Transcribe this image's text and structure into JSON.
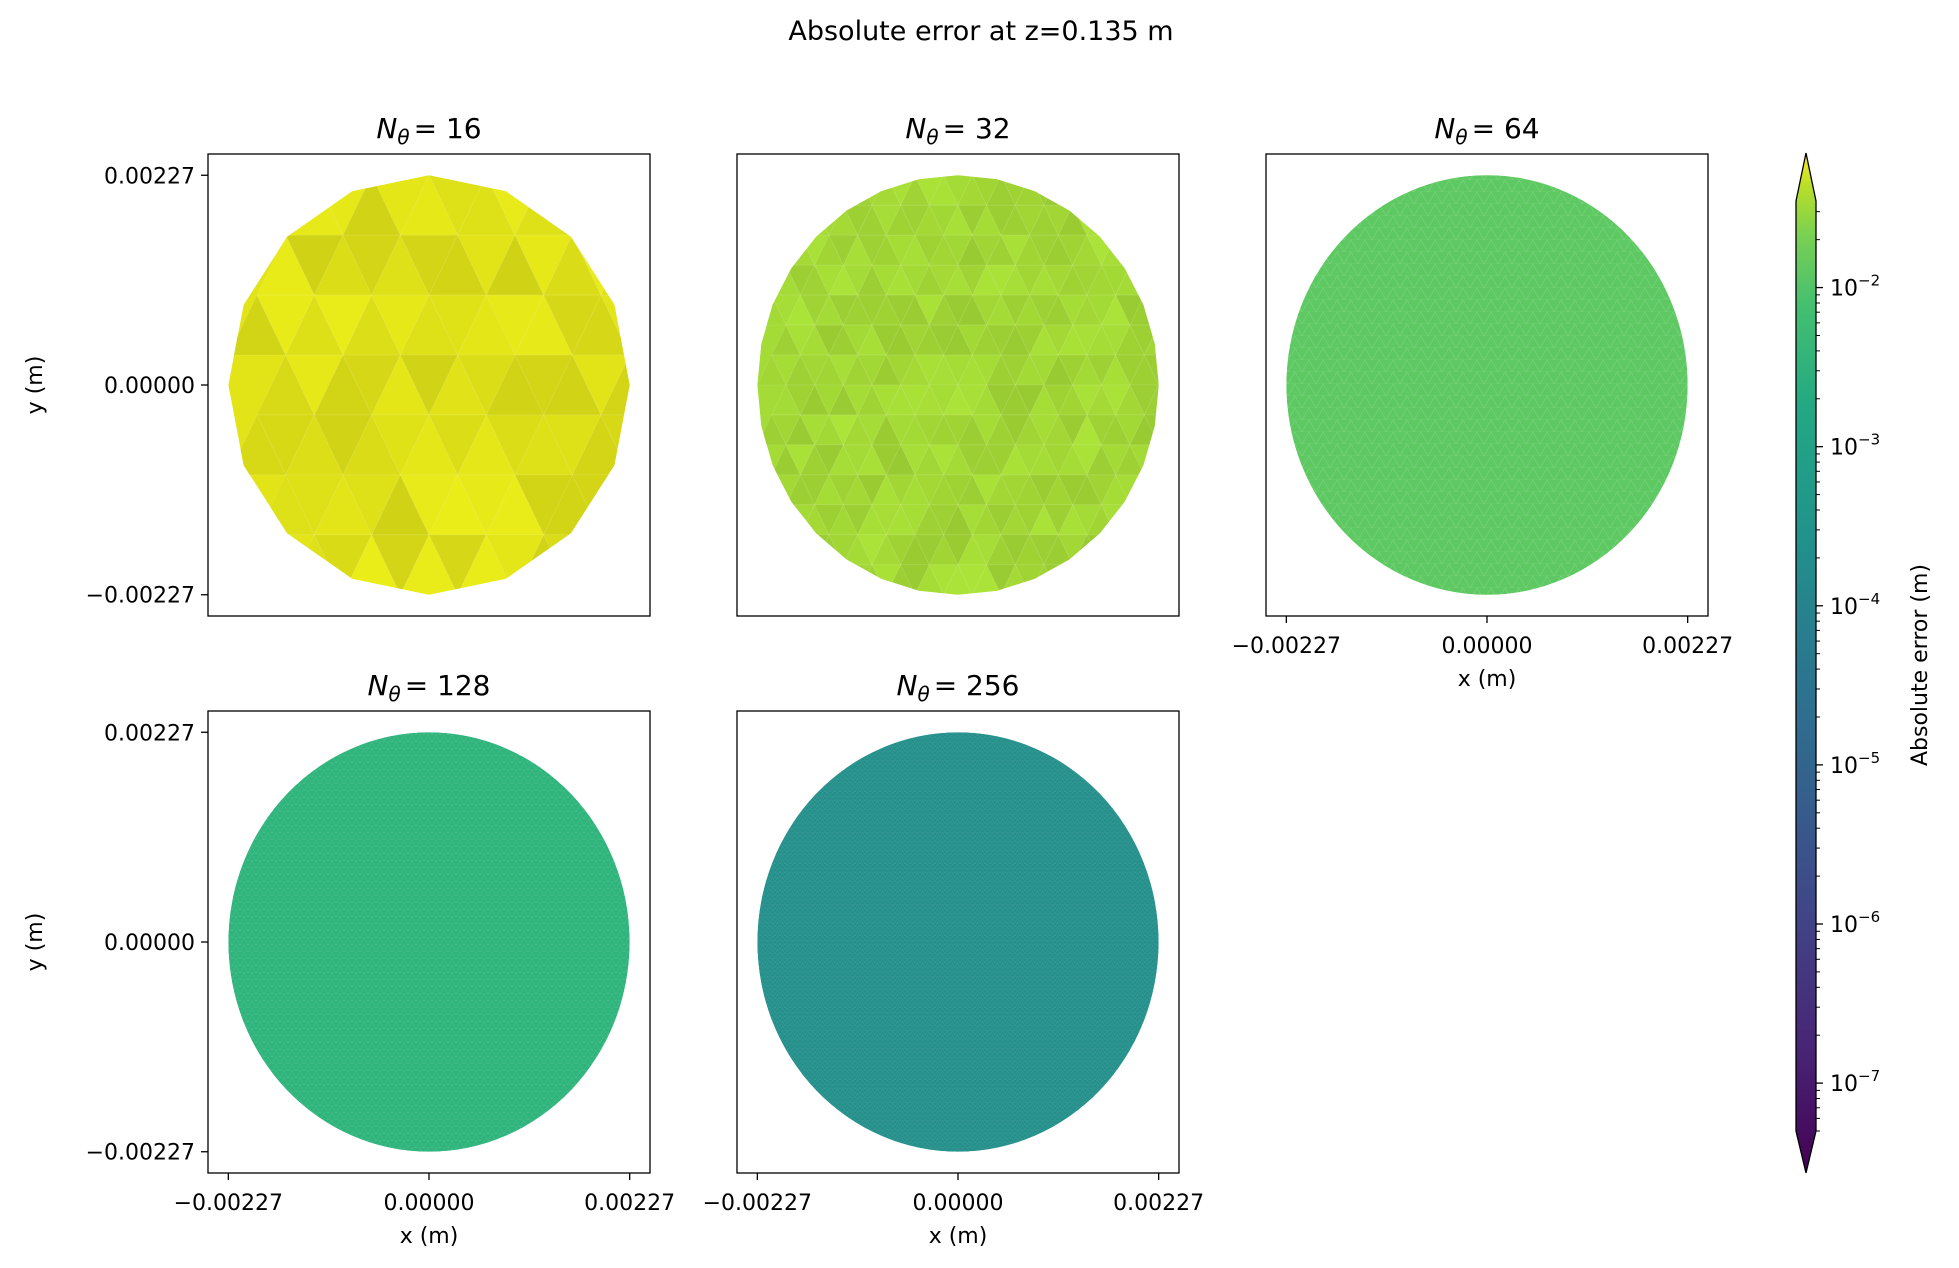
{
  "chart_data": {
    "type": "heatmap",
    "title": "Absolute error at z=0.135 m",
    "colorbar": {
      "label": "Absolute error (m)",
      "scale": "log",
      "colormap": "viridis",
      "range": [
        5e-08,
        0.035
      ],
      "extend": "both",
      "tick_exponents": [
        "−2",
        "−3",
        "−4",
        "−5",
        "−6",
        "−7"
      ],
      "tick_values": [
        0.01,
        0.001,
        0.0001,
        1e-05,
        1e-06,
        1e-07
      ],
      "tick_base": "10"
    },
    "x_ticks": [
      "−0.00227",
      "0.00000",
      "0.00227"
    ],
    "y_ticks": [
      "0.00227",
      "0.00000",
      "−0.00227"
    ],
    "xlabel": "x (m)",
    "ylabel": "y (m)",
    "xlim": [
      -0.0025,
      0.0025
    ],
    "ylim": [
      -0.0025,
      0.0025
    ],
    "domain_radius": 0.00227,
    "panels": [
      {
        "title_sym": "N",
        "title_sub": "θ",
        "title_val": "= 16",
        "n_theta": 16,
        "typical_error": 0.02,
        "color": "#e2e418"
      },
      {
        "title_sym": "N",
        "title_sub": "θ",
        "title_val": "= 32",
        "n_theta": 32,
        "typical_error": 0.005,
        "color": "#a5db36"
      },
      {
        "title_sym": "N",
        "title_sub": "θ",
        "title_val": "= 64",
        "n_theta": 64,
        "typical_error": 0.0012,
        "color": "#5ec962"
      },
      {
        "title_sym": "N",
        "title_sub": "θ",
        "title_val": "= 128",
        "n_theta": 128,
        "typical_error": 0.0003,
        "color": "#2fb47c"
      },
      {
        "title_sym": "N",
        "title_sub": "θ",
        "title_val": "= 256",
        "n_theta": 256,
        "typical_error": 7e-05,
        "color": "#25908b"
      }
    ]
  }
}
